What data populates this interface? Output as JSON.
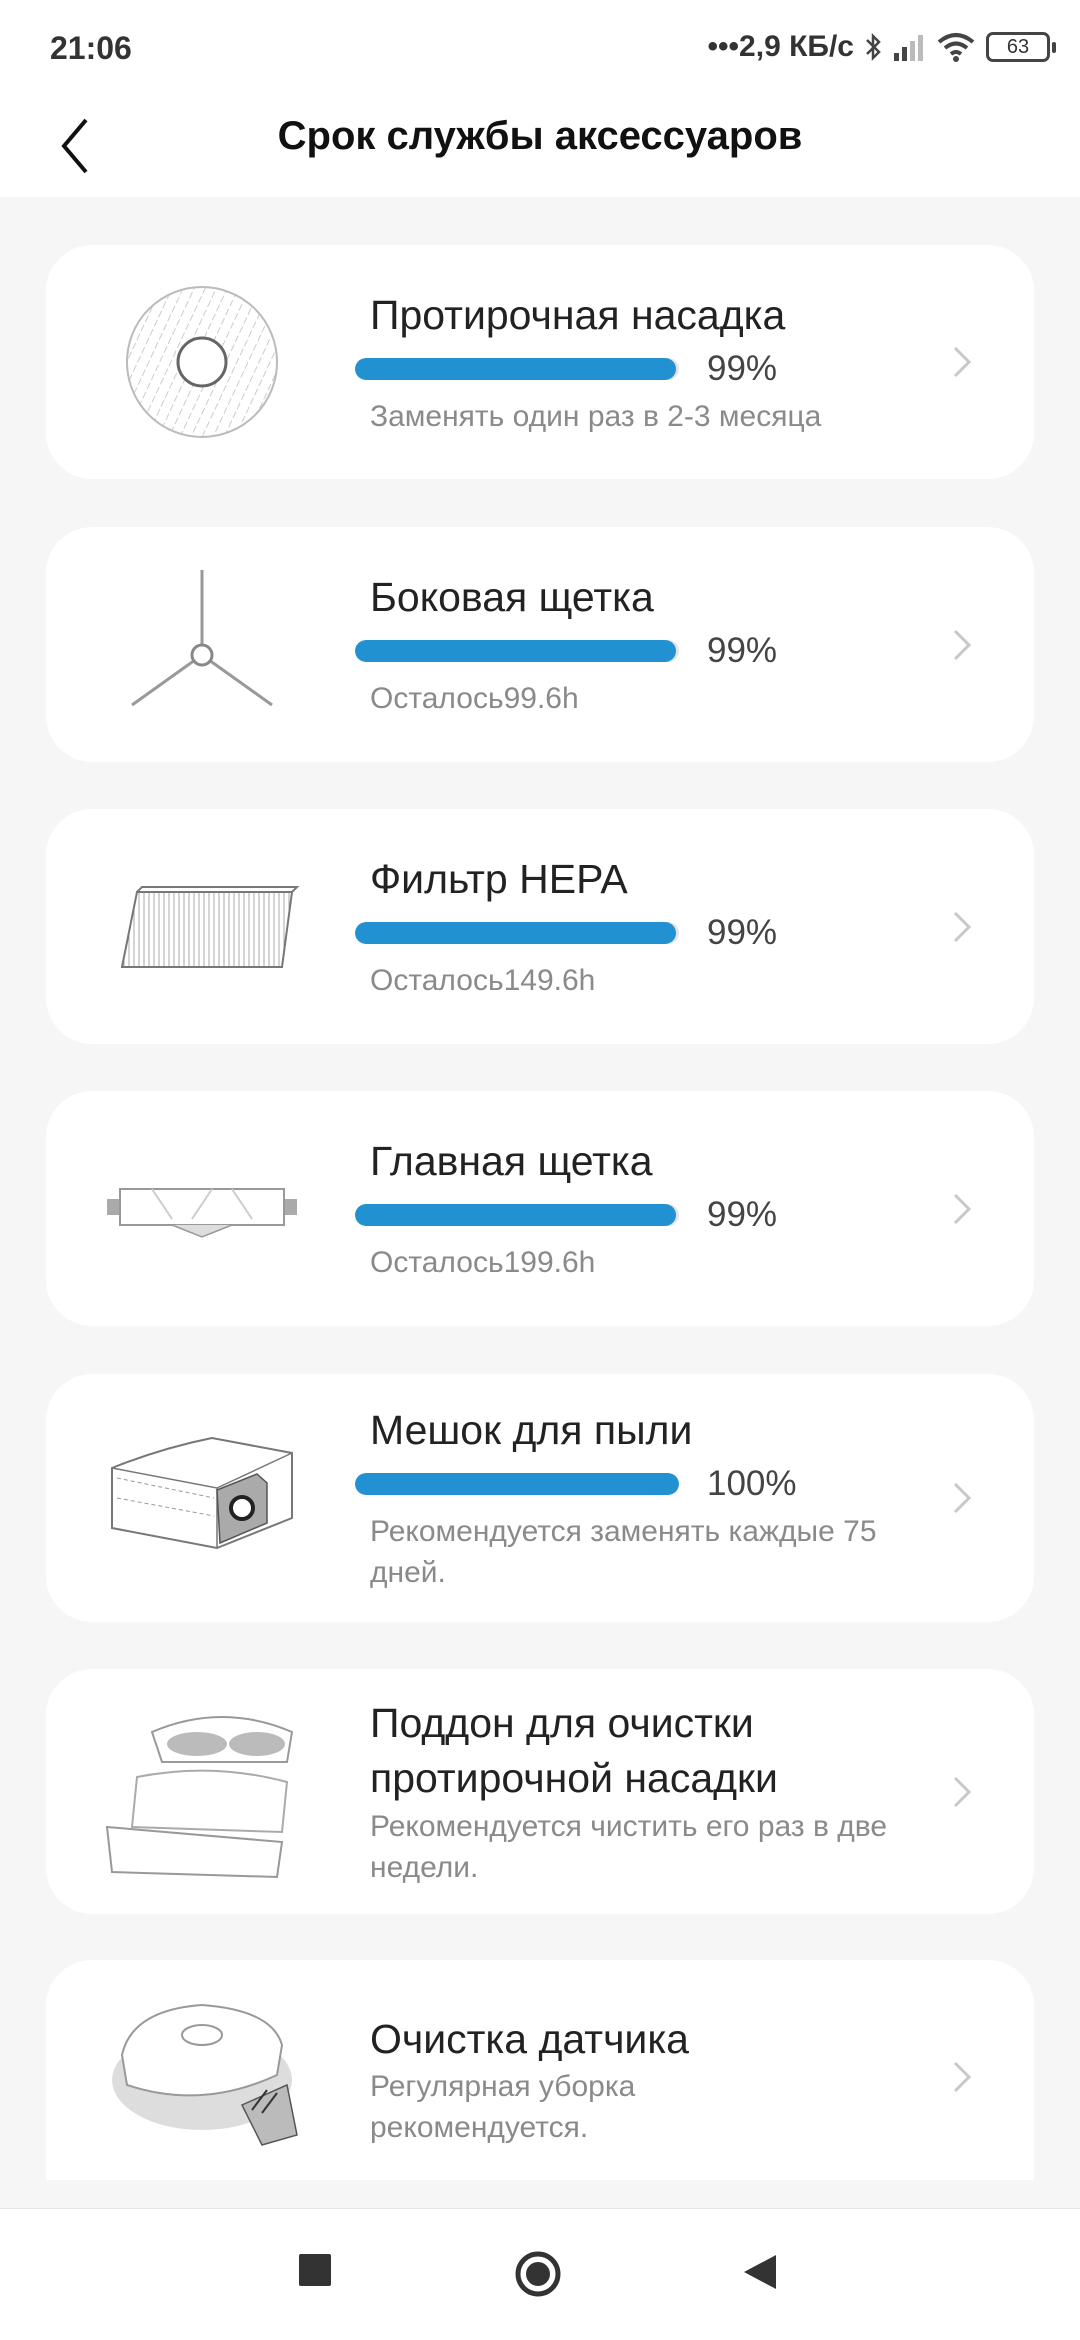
{
  "status_bar": {
    "time": "21:06",
    "network_speed": "•••2,9 КБ/с",
    "battery": "63",
    "icons": [
      "bluetooth-icon",
      "signal-icon",
      "wifi-icon",
      "battery-icon"
    ]
  },
  "header": {
    "title": "Срок службы аксессуаров",
    "back_icon": "chevron-left-icon"
  },
  "accent_color": "#2191d2",
  "items": [
    {
      "name": "Протирочная насадка",
      "progress": 99,
      "progress_label": "99%",
      "subtitle": "Заменять один раз в 2-3 месяца"
    },
    {
      "name": "Боковая щетка",
      "progress": 99,
      "progress_label": "99%",
      "subtitle": "Осталось99.6h"
    },
    {
      "name": "Фильтр HEPA",
      "progress": 99,
      "progress_label": "99%",
      "subtitle": "Осталось149.6h"
    },
    {
      "name": "Главная щетка",
      "progress": 99,
      "progress_label": "99%",
      "subtitle": "Осталось199.6h"
    },
    {
      "name": "Мешок для пыли",
      "progress": 100,
      "progress_label": "100%",
      "subtitle": "Рекомендуется заменять каждые 75 дней."
    },
    {
      "name": "Поддон для очистки протирочной насадки",
      "subtitle": "Рекомендуется чистить его раз в две недели."
    },
    {
      "name": "Очистка датчика",
      "subtitle": "Регулярная уборка рекомендуется."
    }
  ],
  "nav_bar": {
    "icons": [
      "recents-square-icon",
      "home-circle-icon",
      "back-triangle-icon"
    ]
  }
}
